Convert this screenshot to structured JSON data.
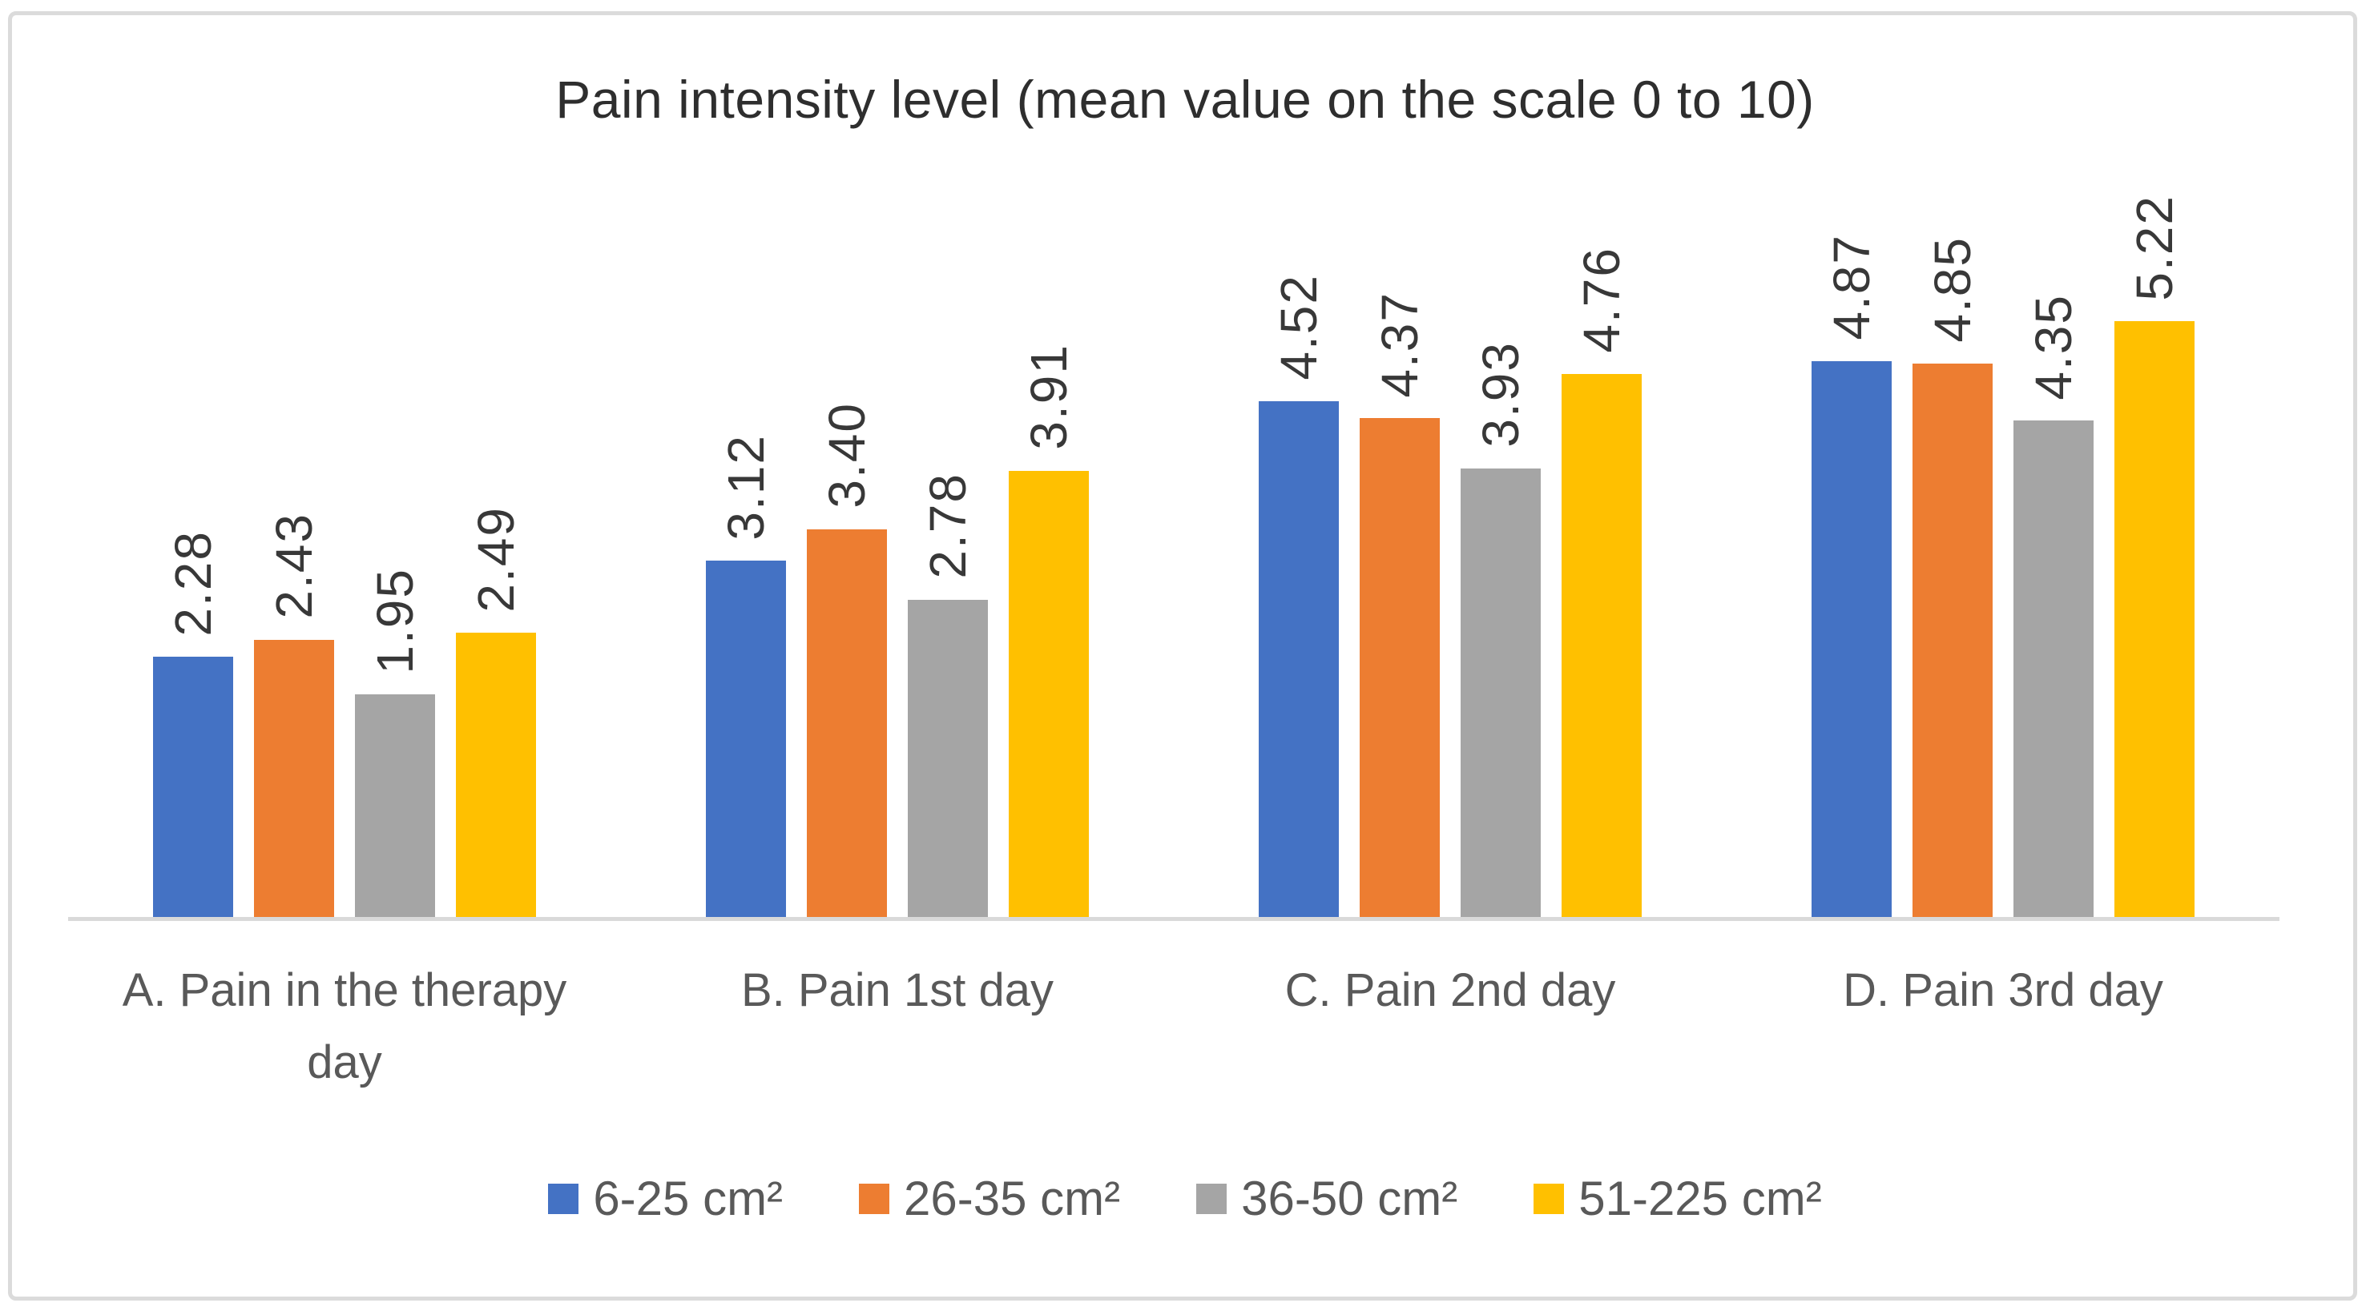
{
  "chart_data": {
    "type": "bar",
    "title": "Pain intensity level (mean value on the scale 0 to 10)",
    "xlabel": "",
    "ylabel": "",
    "ylim": [
      0,
      5.33
    ],
    "gridlines": false,
    "y_axis_visible": false,
    "x_axis_line_color": "#D9D9D9",
    "value_labels_rotated_degrees": 90,
    "legend_position": "bottom",
    "categories": [
      "A. Pain in the therapy day",
      "B. Pain 1st day",
      "C. Pain 2nd day",
      "D. Pain 3rd day"
    ],
    "series": [
      {
        "name": "6-25 cm²",
        "color": "#4472C4",
        "values": [
          2.28,
          3.12,
          4.52,
          4.87
        ],
        "labels": [
          "2.28",
          "3.12",
          "4.52",
          "4.87"
        ]
      },
      {
        "name": "26-35 cm²",
        "color": "#ED7D31",
        "values": [
          2.43,
          3.4,
          4.37,
          4.85
        ],
        "labels": [
          "2.43",
          "3.40",
          "4.37",
          "4.85"
        ]
      },
      {
        "name": "36-50 cm²",
        "color": "#A5A5A5",
        "values": [
          1.95,
          2.78,
          3.93,
          4.35
        ],
        "labels": [
          "1.95",
          "2.78",
          "3.93",
          "4.35"
        ]
      },
      {
        "name": "51-225 cm²",
        "color": "#FFC000",
        "values": [
          2.49,
          3.91,
          4.76,
          5.22
        ],
        "labels": [
          "2.49",
          "3.91",
          "4.76",
          "5.22"
        ]
      }
    ]
  }
}
